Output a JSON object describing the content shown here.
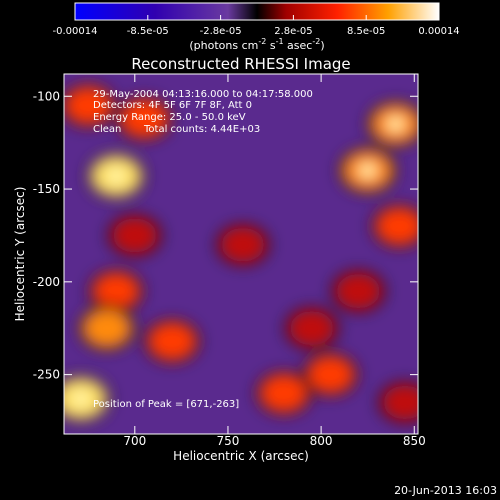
{
  "chart_data": {
    "type": "heatmap",
    "title": "Reconstructed RHESSI Image",
    "xlabel": "Heliocentric X (arcsec)",
    "ylabel": "Heliocentric Y (arcsec)",
    "xlim": [
      662,
      852
    ],
    "ylim": [
      -282,
      -88
    ],
    "xticks": [
      700,
      750,
      800,
      850
    ],
    "yticks": [
      -100,
      -150,
      -200,
      -250
    ],
    "colorbar": {
      "range": [
        -0.00014,
        0.00014
      ],
      "tick_labels": [
        "-0.00014",
        "-8.5e-05",
        "-2.8e-05",
        "2.8e-05",
        "8.5e-05",
        "0.00014"
      ],
      "unit_label": "(photons cm",
      "unit_sup1": "-2",
      "unit_mid": " s",
      "unit_sup2": "-1",
      "unit_mid2": " asec",
      "unit_sup3": "-2",
      "unit_close": ")"
    },
    "annotations": [
      "29-May-2004 04:13:16.000 to 04:17:58.000",
      "Detectors: 4F 5F 6F 7F 8F, Att 0",
      "Energy Range: 25.0 - 50.0 keV",
      "Clean",
      "Total counts: 4.44E+03"
    ],
    "peak_label": "Position of Peak = [671,-263]",
    "peak": [
      671,
      -263
    ],
    "bright_sources": [
      {
        "x": 671,
        "y": -263,
        "value": 1.0
      },
      {
        "x": 690,
        "y": -143,
        "value": 0.95
      },
      {
        "x": 675,
        "y": -105,
        "value": 0.7
      },
      {
        "x": 705,
        "y": -112,
        "value": 0.75
      },
      {
        "x": 700,
        "y": -175,
        "value": 0.6
      },
      {
        "x": 690,
        "y": -205,
        "value": 0.65
      },
      {
        "x": 720,
        "y": -232,
        "value": 0.75
      },
      {
        "x": 685,
        "y": -225,
        "value": 0.8
      },
      {
        "x": 758,
        "y": -180,
        "value": 0.55
      },
      {
        "x": 795,
        "y": -225,
        "value": 0.6
      },
      {
        "x": 805,
        "y": -250,
        "value": 0.7
      },
      {
        "x": 780,
        "y": -260,
        "value": 0.75
      },
      {
        "x": 840,
        "y": -115,
        "value": 0.85
      },
      {
        "x": 825,
        "y": -140,
        "value": 0.9
      },
      {
        "x": 842,
        "y": -170,
        "value": 0.7
      },
      {
        "x": 820,
        "y": -205,
        "value": 0.6
      },
      {
        "x": 845,
        "y": -265,
        "value": 0.55
      }
    ]
  },
  "footer": {
    "timestamp": "20-Jun-2013 16:03"
  }
}
